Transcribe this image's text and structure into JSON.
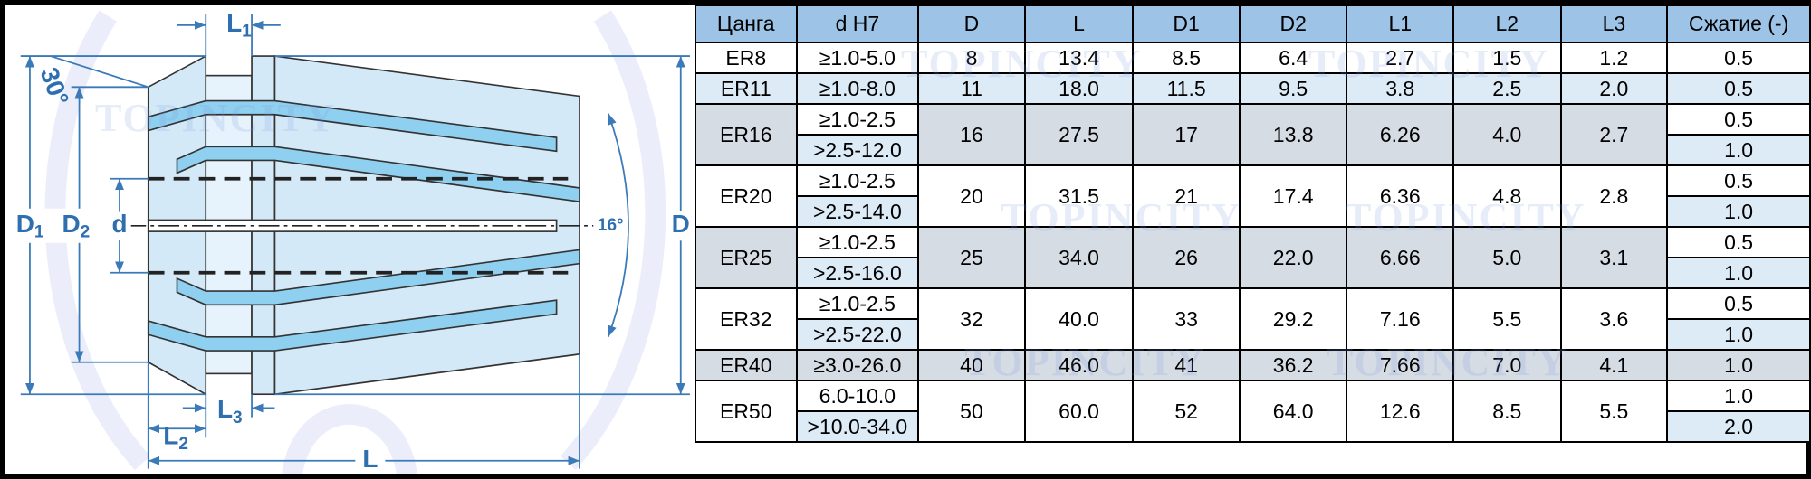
{
  "diagram": {
    "labels": {
      "D1": {
        "main": "D",
        "sub": "1"
      },
      "D2": {
        "main": "D",
        "sub": "2"
      },
      "d": "d",
      "D": "D",
      "L": "L",
      "L1": {
        "main": "L",
        "sub": "1"
      },
      "L2": {
        "main": "L",
        "sub": "2"
      },
      "L3": {
        "main": "L",
        "sub": "3"
      },
      "angle30": "30°",
      "angle16": "16°"
    }
  },
  "watermark": "TOPINCITY",
  "table": {
    "header": [
      "Цанга",
      "d H7",
      "D",
      "L",
      "D1",
      "D2",
      "L1",
      "L2",
      "L3",
      "Сжатие (-)"
    ],
    "rows": [
      {
        "name": "ER8",
        "d_h7": [
          "≥1.0-5.0"
        ],
        "D": "8",
        "L": "13.4",
        "D1": "8.5",
        "D2": "6.4",
        "L1": "2.7",
        "L2": "1.5",
        "L3": "1.2",
        "compression": [
          "0.5"
        ]
      },
      {
        "name": "ER11",
        "d_h7": [
          "≥1.0-8.0"
        ],
        "D": "11",
        "L": "18.0",
        "D1": "11.5",
        "D2": "9.5",
        "L1": "3.8",
        "L2": "2.5",
        "L3": "2.0",
        "compression": [
          "0.5"
        ]
      },
      {
        "name": "ER16",
        "d_h7": [
          "≥1.0-2.5",
          ">2.5-12.0"
        ],
        "D": "16",
        "L": "27.5",
        "D1": "17",
        "D2": "13.8",
        "L1": "6.26",
        "L2": "4.0",
        "L3": "2.7",
        "compression": [
          "0.5",
          "1.0"
        ]
      },
      {
        "name": "ER20",
        "d_h7": [
          "≥1.0-2.5",
          ">2.5-14.0"
        ],
        "D": "20",
        "L": "31.5",
        "D1": "21",
        "D2": "17.4",
        "L1": "6.36",
        "L2": "4.8",
        "L3": "2.8",
        "compression": [
          "0.5",
          "1.0"
        ]
      },
      {
        "name": "ER25",
        "d_h7": [
          "≥1.0-2.5",
          ">2.5-16.0"
        ],
        "D": "25",
        "L": "34.0",
        "D1": "26",
        "D2": "22.0",
        "L1": "6.66",
        "L2": "5.0",
        "L3": "3.1",
        "compression": [
          "0.5",
          "1.0"
        ]
      },
      {
        "name": "ER32",
        "d_h7": [
          "≥1.0-2.5",
          ">2.5-22.0"
        ],
        "D": "32",
        "L": "40.0",
        "D1": "33",
        "D2": "29.2",
        "L1": "7.16",
        "L2": "5.5",
        "L3": "3.6",
        "compression": [
          "0.5",
          "1.0"
        ]
      },
      {
        "name": "ER40",
        "d_h7": [
          "≥3.0-26.0"
        ],
        "D": "40",
        "L": "46.0",
        "D1": "41",
        "D2": "36.2",
        "L1": "7.66",
        "L2": "7.0",
        "L3": "4.1",
        "compression": [
          "1.0"
        ]
      },
      {
        "name": "ER50",
        "d_h7": [
          "6.0-10.0",
          ">10.0-34.0"
        ],
        "D": "50",
        "L": "60.0",
        "D1": "52",
        "D2": "64.0",
        "L1": "12.6",
        "L2": "8.5",
        "L3": "5.5",
        "compression": [
          "1.0",
          "2.0"
        ]
      }
    ]
  }
}
